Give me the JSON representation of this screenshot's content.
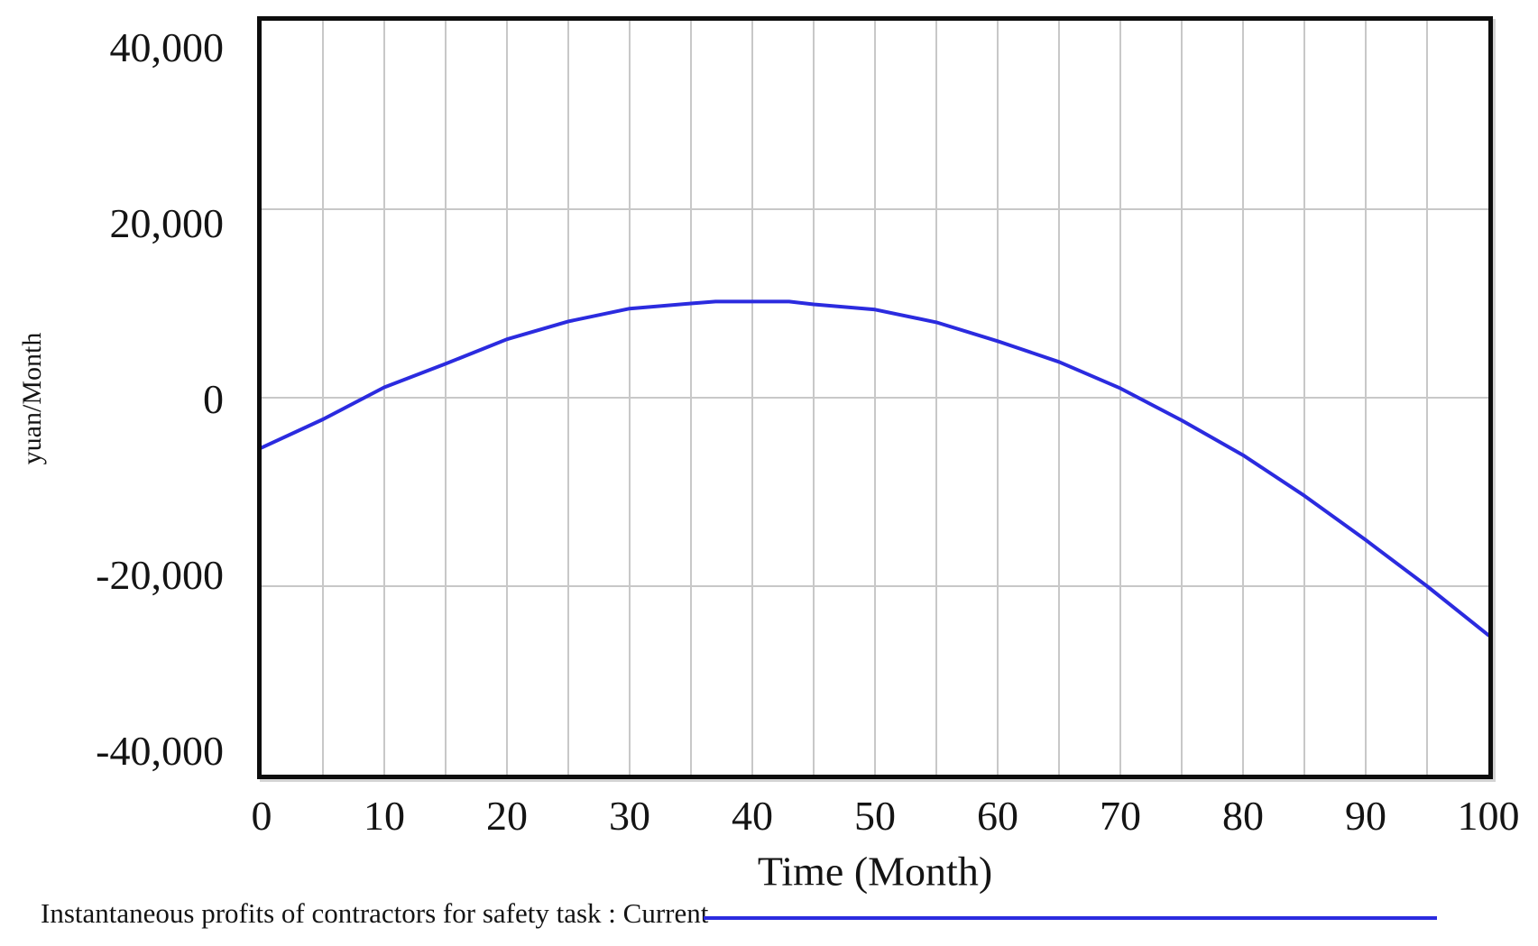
{
  "chart_data": {
    "type": "line",
    "title": "",
    "xlabel": "Time (Month)",
    "ylabel": "yuan/Month",
    "xlim": [
      0,
      100
    ],
    "ylim": [
      -40000,
      40000
    ],
    "grid": true,
    "x_tick_values": [
      0,
      10,
      20,
      30,
      40,
      50,
      60,
      70,
      80,
      90,
      100
    ],
    "x_tick_labels": [
      "0",
      "10",
      "20",
      "30",
      "40",
      "50",
      "60",
      "70",
      "80",
      "90",
      "100"
    ],
    "y_tick_values": [
      40000,
      20000,
      0,
      -20000,
      -40000
    ],
    "y_tick_labels": [
      "40,000",
      "20,000",
      "0",
      "-20,000",
      "-40,000"
    ],
    "x_grid_step": 5,
    "y_gridline_values": [
      20000,
      0,
      -20000
    ],
    "x": [
      0,
      5,
      10,
      15,
      20,
      25,
      30,
      35,
      37,
      43,
      45,
      50,
      55,
      60,
      65,
      70,
      75,
      80,
      85,
      90,
      95,
      100
    ],
    "series": [
      {
        "name": "Instantaneous profits of contractors for safety task : Current",
        "color": "#2b2bdf",
        "values": [
          -5300,
          -2300,
          1100,
          3600,
          6200,
          8100,
          9450,
          10000,
          10200,
          10200,
          9900,
          9350,
          8000,
          6000,
          3800,
          1000,
          -2400,
          -6100,
          -10400,
          -15100,
          -20000,
          -25200
        ]
      }
    ],
    "legend_position": "bottom-left"
  },
  "legend": {
    "label": "Instantaneous profits of contractors for safety task : Current"
  },
  "axis_titles": {
    "x": "Time (Month)",
    "y": "yuan/Month"
  },
  "colors": {
    "curve_blue": "#2b2bdf",
    "gridline": "#c8c8c8",
    "axis_border": "#0d0d0d",
    "text": "#141414",
    "background": "#ffffff"
  }
}
